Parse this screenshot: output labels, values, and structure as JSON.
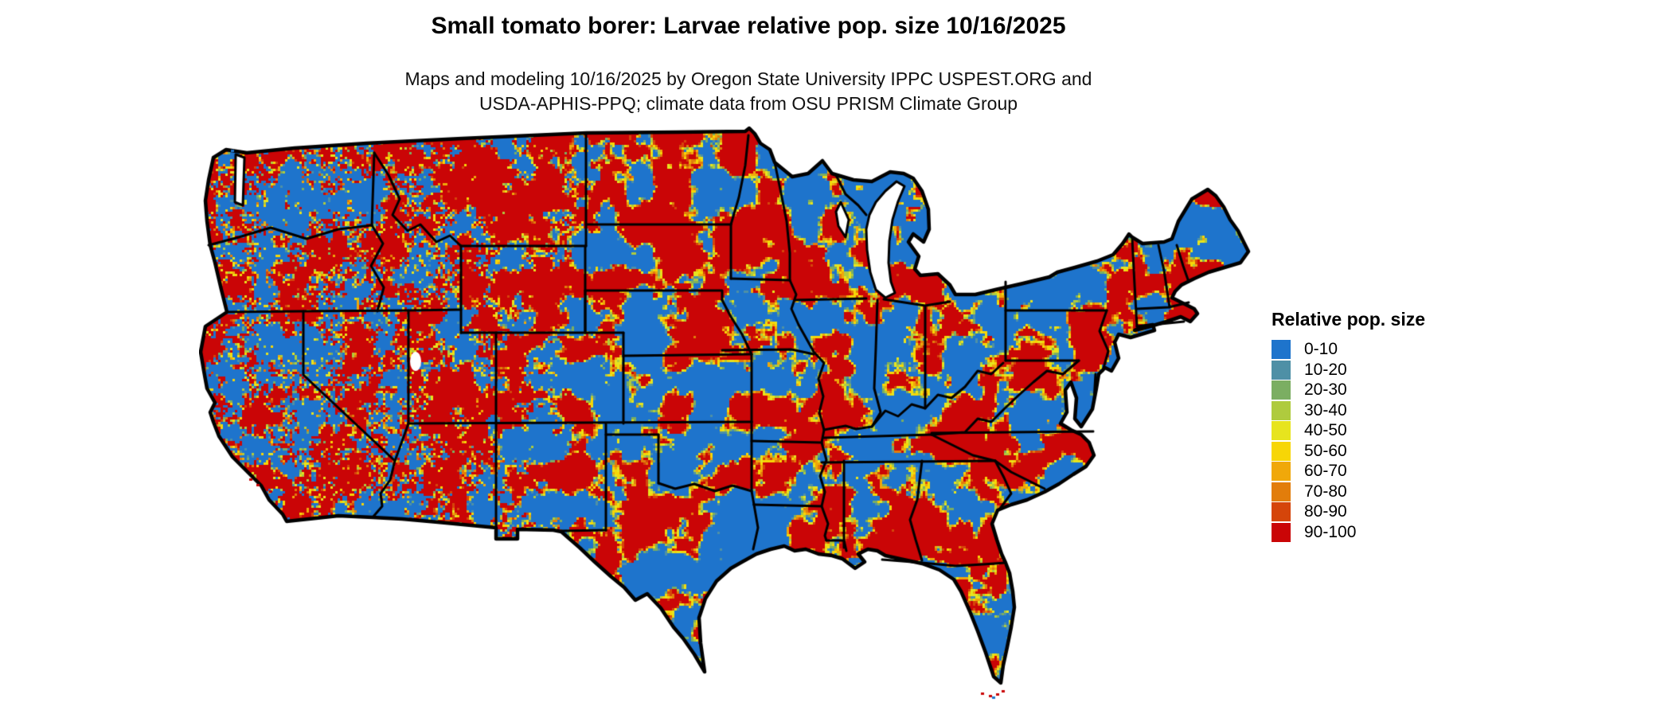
{
  "header": {
    "title": "Small tomato borer: Larvae relative pop. size 10/16/2025",
    "subtitle_line1": "Maps and modeling 10/16/2025 by Oregon State University IPPC USPEST.ORG and",
    "subtitle_line2": "USDA-APHIS-PPQ; climate data from OSU PRISM Climate Group"
  },
  "map": {
    "region": "Contiguous United States",
    "border_color": "#000000",
    "water_color": "#ffffff"
  },
  "legend": {
    "title": "Relative pop. size",
    "items": [
      {
        "label": "0-10",
        "color": "#1E74CC"
      },
      {
        "label": "10-20",
        "color": "#4E90A6"
      },
      {
        "label": "20-30",
        "color": "#7BAE62"
      },
      {
        "label": "30-40",
        "color": "#AFCB3E"
      },
      {
        "label": "40-50",
        "color": "#E7E41E"
      },
      {
        "label": "50-60",
        "color": "#F7D606"
      },
      {
        "label": "60-70",
        "color": "#F0A80A"
      },
      {
        "label": "70-80",
        "color": "#E27D0B"
      },
      {
        "label": "80-90",
        "color": "#D5450A"
      },
      {
        "label": "90-100",
        "color": "#CA0506"
      }
    ]
  }
}
